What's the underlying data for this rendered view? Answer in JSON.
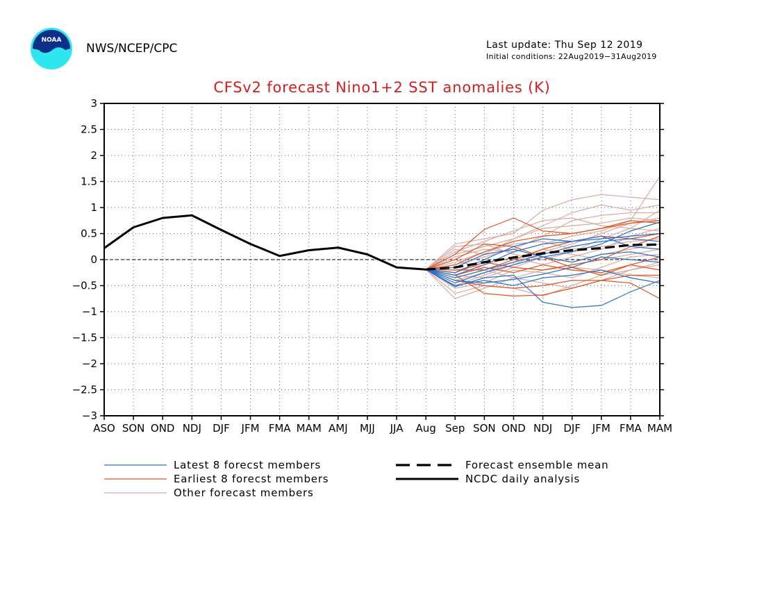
{
  "header": {
    "logo_text": "NOAA",
    "agency": "NWS/NCEP/CPC",
    "last_update": "Last update: Thu Sep 12 2019",
    "initial_conditions": "Initial conditions: 22Aug2019−31Aug2019"
  },
  "colors": {
    "title": "#d21e1e",
    "latest": "#2a6fcc",
    "earliest": "#e0531f",
    "other": "#d8aca4",
    "analysis": "#000000",
    "mean": "#000000"
  },
  "chart_data": {
    "type": "line",
    "title": "CFSv2 forecast Nino1+2 SST anomalies (K)",
    "categories": [
      "ASO",
      "SON",
      "OND",
      "NDJ",
      "DJF",
      "JFM",
      "FMA",
      "MAM",
      "AMJ",
      "MJJ",
      "JJA",
      "Aug",
      "Sep",
      "SON",
      "OND",
      "NDJ",
      "DJF",
      "JFM",
      "FMA",
      "MAM"
    ],
    "ylim": [
      -3,
      3
    ],
    "yticks": [
      3,
      2.5,
      2,
      1.5,
      1,
      0.5,
      0,
      -0.5,
      -1,
      -1.5,
      -2,
      -2.5,
      -3
    ],
    "ytick_labels": [
      "3",
      "2.5",
      "2",
      "1.5",
      "1",
      "0.5",
      "0",
      "−0.5",
      "−1",
      "−1.5",
      "−2",
      "−2.5",
      "−3"
    ],
    "grid": true,
    "zero_line": true,
    "legend": [
      {
        "key": "latest",
        "label": "Latest 8 forecst members"
      },
      {
        "key": "earliest",
        "label": "Earliest 8 forecst members"
      },
      {
        "key": "other",
        "label": "Other forecast members"
      },
      {
        "key": "mean",
        "label": "Forecast ensemble mean"
      },
      {
        "key": "analysis",
        "label": "NCDC daily analysis"
      }
    ],
    "analysis": {
      "x_index": [
        0,
        1,
        2,
        3,
        4,
        5,
        6,
        7,
        8,
        9,
        10,
        11
      ],
      "values": [
        0.22,
        0.62,
        0.8,
        0.85,
        0.57,
        0.3,
        0.07,
        0.18,
        0.23,
        0.1,
        -0.15,
        -0.19
      ]
    },
    "ensemble_mean": {
      "x_index": [
        11,
        12,
        13,
        14,
        15,
        16,
        17,
        18,
        19
      ],
      "values": [
        -0.19,
        -0.15,
        -0.05,
        0.04,
        0.12,
        0.18,
        0.22,
        0.28,
        0.29
      ]
    },
    "members": {
      "x_index": [
        11,
        12,
        13,
        14,
        15,
        16,
        17,
        18,
        19
      ],
      "latest": [
        [
          -0.19,
          -0.52,
          -0.35,
          -0.3,
          -0.82,
          -0.92,
          -0.88,
          -0.62,
          -0.4
        ],
        [
          -0.19,
          -0.45,
          -0.25,
          -0.1,
          0.05,
          0.15,
          0.3,
          0.55,
          0.72
        ],
        [
          -0.19,
          -0.3,
          -0.1,
          0.15,
          0.3,
          0.35,
          0.4,
          0.45,
          0.5
        ],
        [
          -0.19,
          -0.4,
          -0.45,
          -0.38,
          -0.28,
          -0.15,
          0.05,
          0.0,
          -0.05
        ],
        [
          -0.19,
          -0.25,
          0.0,
          0.25,
          0.4,
          0.35,
          0.45,
          0.25,
          0.2
        ],
        [
          -0.19,
          -0.35,
          -0.2,
          -0.05,
          0.1,
          0.25,
          0.35,
          0.4,
          0.35
        ],
        [
          -0.19,
          -0.15,
          0.1,
          0.2,
          0.05,
          -0.05,
          0.1,
          0.15,
          0.05
        ],
        [
          -0.19,
          -0.5,
          -0.4,
          -0.5,
          -0.35,
          -0.3,
          -0.2,
          -0.35,
          -0.45
        ]
      ],
      "earliest": [
        [
          -0.19,
          0.1,
          0.58,
          0.8,
          0.55,
          0.5,
          0.6,
          0.75,
          0.7
        ],
        [
          -0.19,
          -0.3,
          -0.65,
          -0.7,
          -0.68,
          -0.55,
          -0.4,
          -0.45,
          -0.75
        ],
        [
          -0.19,
          0.0,
          0.3,
          0.25,
          0.05,
          -0.15,
          -0.3,
          -0.1,
          0.05
        ],
        [
          -0.19,
          -0.2,
          -0.2,
          0.0,
          0.2,
          0.35,
          0.45,
          0.4,
          0.5
        ],
        [
          -0.19,
          -0.4,
          -0.5,
          -0.55,
          -0.5,
          -0.4,
          -0.4,
          -0.3,
          -0.3
        ],
        [
          -0.19,
          -0.1,
          0.15,
          0.35,
          0.45,
          0.5,
          0.6,
          0.7,
          0.75
        ],
        [
          -0.19,
          -0.25,
          -0.05,
          -0.15,
          -0.2,
          -0.1,
          0.0,
          0.25,
          0.45
        ],
        [
          -0.19,
          -0.3,
          -0.15,
          -0.25,
          -0.1,
          -0.2,
          -0.25,
          -0.1,
          -0.2
        ]
      ],
      "other": [
        [
          -0.19,
          -0.75,
          -0.55,
          -0.35,
          -0.2,
          -0.15,
          -0.2,
          -0.3,
          -0.35
        ],
        [
          -0.19,
          -0.5,
          -0.3,
          -0.1,
          0.15,
          0.3,
          0.5,
          0.7,
          0.8
        ],
        [
          -0.19,
          0.3,
          0.4,
          0.5,
          0.95,
          1.15,
          1.25,
          1.2,
          1.15
        ],
        [
          -0.19,
          0.2,
          0.1,
          0.4,
          0.65,
          0.9,
          1.05,
          0.95,
          1.05
        ],
        [
          -0.19,
          0.05,
          0.2,
          0.15,
          0.3,
          0.45,
          0.55,
          0.75,
          1.6
        ],
        [
          -0.19,
          -0.1,
          0.05,
          0.2,
          0.45,
          0.75,
          0.85,
          0.9,
          0.9
        ],
        [
          -0.19,
          0.0,
          -0.2,
          -0.35,
          -0.45,
          -0.55,
          -0.4,
          -0.2,
          -0.05
        ],
        [
          -0.19,
          -0.65,
          -0.5,
          -0.55,
          -0.7,
          -0.5,
          -0.3,
          -0.2,
          -0.1
        ],
        [
          -0.19,
          0.1,
          0.25,
          0.4,
          0.6,
          0.65,
          0.7,
          0.8,
          0.75
        ],
        [
          -0.19,
          -0.2,
          -0.1,
          0.05,
          -0.1,
          0.05,
          0.2,
          0.45,
          0.6
        ],
        [
          -0.19,
          -0.3,
          -0.35,
          -0.15,
          0.05,
          -0.05,
          0.1,
          0.2,
          0.3
        ],
        [
          -0.19,
          0.15,
          0.35,
          0.55,
          0.75,
          0.8,
          0.65,
          0.6,
          0.55
        ],
        [
          -0.19,
          -0.4,
          -0.25,
          -0.05,
          0.2,
          0.1,
          0.0,
          0.1,
          0.2
        ],
        [
          -0.19,
          -0.05,
          0.15,
          0.3,
          0.35,
          0.2,
          0.25,
          0.35,
          0.4
        ],
        [
          -0.19,
          -0.55,
          -0.45,
          -0.2,
          -0.25,
          -0.35,
          -0.15,
          0.05,
          0.1
        ],
        [
          -0.19,
          0.25,
          0.3,
          0.1,
          0.0,
          0.15,
          0.4,
          0.6,
          0.95
        ]
      ]
    }
  }
}
